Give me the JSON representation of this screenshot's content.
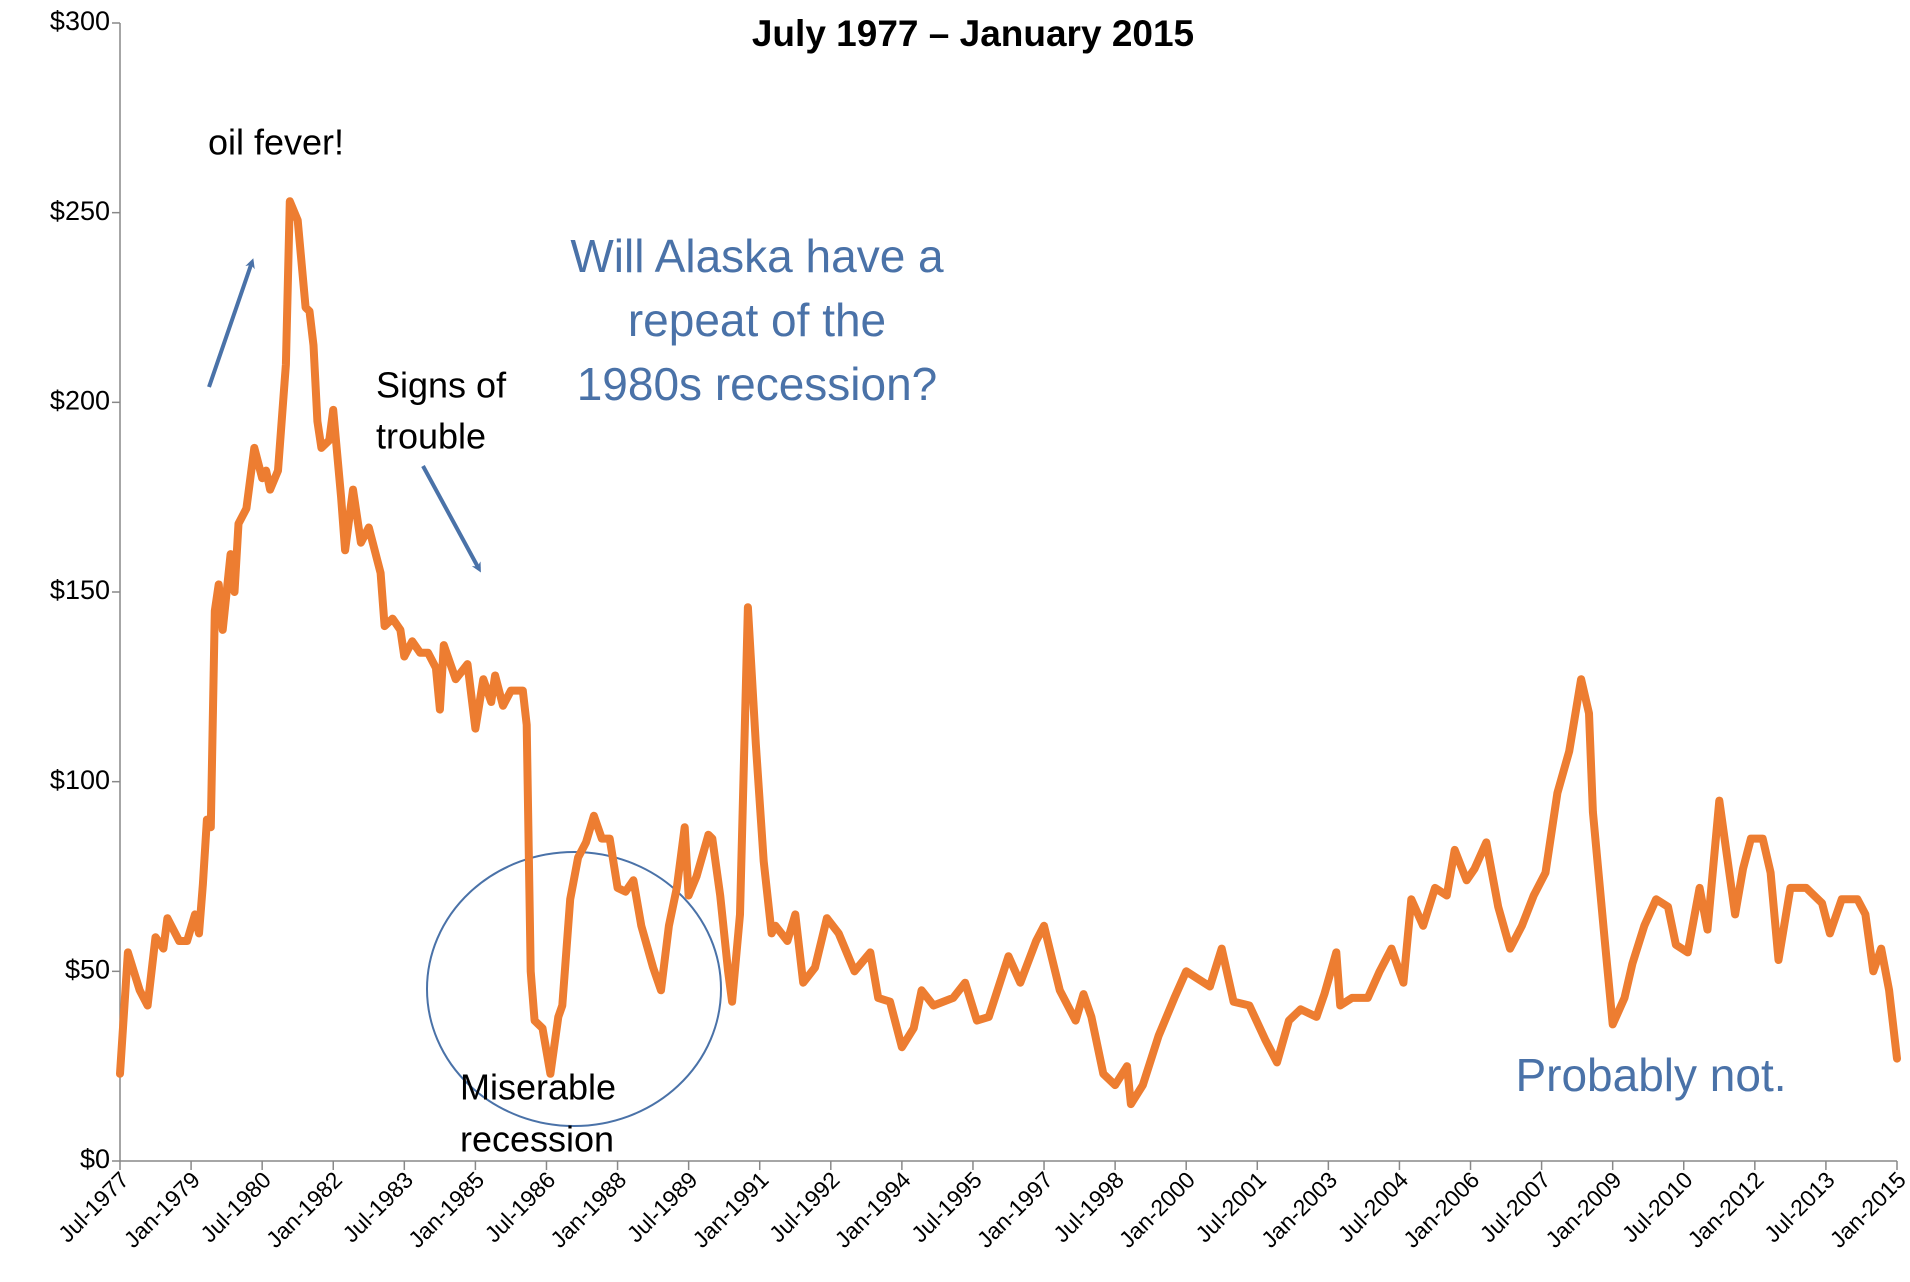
{
  "chart_data": {
    "type": "line",
    "title": "July 1977 – January 2015",
    "x": [
      "Jul-1977",
      "Sep-1977",
      "Dec-1977",
      "Feb-1978",
      "Apr-1978",
      "Jun-1978",
      "Jul-1978",
      "Oct-1978",
      "Dec-1978",
      "Feb-1979",
      "Mar-1979",
      "Apr-1979",
      "May-1979",
      "Jun-1979",
      "Jul-1979",
      "Aug-1979",
      "Sep-1979",
      "Nov-1979",
      "Dec-1979",
      "Jan-1980",
      "Mar-1980",
      "May-1980",
      "Jul-1980",
      "Aug-1980",
      "Sep-1980",
      "Nov-1980",
      "Jan-1981",
      "Feb-1981",
      "Apr-1981",
      "Jun-1981",
      "Jul-1981",
      "Aug-1981",
      "Sep-1981",
      "Oct-1981",
      "Dec-1981",
      "Jan-1982",
      "Mar-1982",
      "Apr-1982",
      "Jun-1982",
      "Aug-1982",
      "Oct-1982",
      "Jan-1983",
      "Feb-1983",
      "Apr-1983",
      "Jun-1983",
      "Jul-1983",
      "Sep-1983",
      "Nov-1983",
      "Jan-1984",
      "Mar-1984",
      "Apr-1984",
      "May-1984",
      "Aug-1984",
      "Nov-1984",
      "Jan-1985",
      "Mar-1985",
      "May-1985",
      "Jun-1985",
      "Aug-1985",
      "Oct-1985",
      "Jan-1986",
      "Feb-1986",
      "Mar-1986",
      "Apr-1986",
      "Jun-1986",
      "Aug-1986",
      "Oct-1986",
      "Nov-1986",
      "Jan-1987",
      "Mar-1987",
      "May-1987",
      "Jul-1987",
      "Sep-1987",
      "Nov-1987",
      "Jan-1988",
      "Mar-1988",
      "May-1988",
      "Jul-1988",
      "Oct-1988",
      "Dec-1988",
      "Feb-1989",
      "Apr-1989",
      "Jun-1989",
      "Jul-1989",
      "Sep-1989",
      "Dec-1989",
      "Jan-1990",
      "Mar-1990",
      "May-1990",
      "Jun-1990",
      "Aug-1990",
      "Oct-1990",
      "Dec-1990",
      "Feb-1991",
      "Apr-1991",
      "May-1991",
      "Aug-1991",
      "Oct-1991",
      "Dec-1991",
      "Mar-1992",
      "Jun-1992",
      "Sep-1992",
      "Jan-1993",
      "May-1993",
      "Jul-1993",
      "Oct-1993",
      "Jan-1994",
      "Apr-1994",
      "Jun-1994",
      "Sep-1994",
      "Feb-1995",
      "May-1995",
      "Aug-1995",
      "Nov-1995",
      "Apr-1996",
      "Jul-1996",
      "Nov-1996",
      "Jan-1997",
      "May-1997",
      "Sep-1997",
      "Nov-1997",
      "Jan-1998",
      "Apr-1998",
      "Jul-1998",
      "Oct-1998",
      "Nov-1998",
      "Feb-1999",
      "Jun-1999",
      "Oct-1999",
      "Jan-2000",
      "Apr-2000",
      "Jul-2000",
      "Oct-2000",
      "Jan-2001",
      "May-2001",
      "Sep-2001",
      "Dec-2001",
      "Mar-2002",
      "Jun-2002",
      "Oct-2002",
      "Dec-2002",
      "Mar-2003",
      "Apr-2003",
      "Jul-2003",
      "Nov-2003",
      "Feb-2004",
      "May-2004",
      "Aug-2004",
      "Oct-2004",
      "Jan-2005",
      "Apr-2005",
      "Jul-2005",
      "Sep-2005",
      "Dec-2005",
      "Feb-2006",
      "May-2006",
      "Aug-2006",
      "Nov-2006",
      "Feb-2007",
      "May-2007",
      "Aug-2007",
      "Nov-2007",
      "Feb-2008",
      "May-2008",
      "Jul-2008",
      "Aug-2008",
      "Nov-2008",
      "Jan-2009",
      "Apr-2009",
      "Jun-2009",
      "Sep-2009",
      "Dec-2009",
      "Mar-2010",
      "May-2010",
      "Aug-2010",
      "Nov-2010",
      "Jan-2011",
      "Apr-2011",
      "Jun-2011",
      "Aug-2011",
      "Oct-2011",
      "Dec-2011",
      "Mar-2012",
      "May-2012",
      "Jul-2012",
      "Oct-2012",
      "Feb-2013",
      "Jun-2013",
      "Aug-2013",
      "Nov-2013",
      "Mar-2014",
      "May-2014",
      "Jul-2014",
      "Sep-2014",
      "Nov-2014",
      "Jan-2015"
    ],
    "series": [
      {
        "color": "#ed7d31",
        "values": [
          23,
          55,
          45,
          41,
          59,
          56,
          64,
          58,
          58,
          65,
          60,
          73,
          90,
          88,
          145,
          152,
          140,
          160,
          150,
          168,
          172,
          188,
          180,
          182,
          177,
          182,
          210,
          253,
          248,
          225,
          224,
          215,
          195,
          188,
          190,
          198,
          175,
          161,
          177,
          163,
          167,
          155,
          141,
          143,
          140,
          133,
          137,
          134,
          134,
          130,
          119,
          136,
          127,
          131,
          114,
          127,
          121,
          128,
          120,
          124,
          124,
          115,
          50,
          37,
          35,
          23,
          38,
          41,
          69,
          80,
          84,
          91,
          85,
          85,
          72,
          71,
          74,
          62,
          51,
          45,
          62,
          72,
          88,
          70,
          75,
          86,
          85,
          70,
          50,
          42,
          65,
          146,
          110,
          79,
          60,
          62,
          58,
          65,
          47,
          51,
          64,
          60,
          50,
          55,
          43,
          42,
          30,
          35,
          45,
          41,
          43,
          47,
          37,
          38,
          54,
          47,
          58,
          62,
          45,
          37,
          44,
          38,
          23,
          20,
          25,
          15,
          20,
          33,
          43,
          50,
          48,
          46,
          56,
          42,
          41,
          32,
          26,
          37,
          40,
          38,
          44,
          55,
          41,
          43,
          43,
          50,
          56,
          47,
          69,
          62,
          72,
          70,
          82,
          74,
          77,
          84,
          67,
          56,
          62,
          70,
          76,
          97,
          108,
          127,
          118,
          92,
          58,
          36,
          43,
          52,
          62,
          69,
          67,
          57,
          55,
          72,
          61,
          95,
          80,
          65,
          77,
          85,
          85,
          76,
          53,
          72,
          72,
          68,
          60,
          69,
          69,
          65,
          50,
          56,
          45,
          27
        ]
      }
    ],
    "xlim": [
      "Jul-1977",
      "Jan-2015"
    ],
    "xticks": [
      "Jul-1977",
      "Jan-1979",
      "Jul-1980",
      "Jan-1982",
      "Jul-1983",
      "Jan-1985",
      "Jul-1986",
      "Jan-1988",
      "Jul-1989",
      "Jan-1991",
      "Jul-1992",
      "Jan-1994",
      "Jul-1995",
      "Jan-1997",
      "Jul-1998",
      "Jan-2000",
      "Jul-2001",
      "Jan-2003",
      "Jul-2004",
      "Jan-2006",
      "Jul-2007",
      "Jan-2009",
      "Jul-2010",
      "Jan-2012",
      "Jul-2013",
      "Jan-2015"
    ],
    "ylim": [
      0,
      300
    ],
    "yticks": [
      {
        "value": 0,
        "label": "$0"
      },
      {
        "value": 50,
        "label": "$50"
      },
      {
        "value": 100,
        "label": "$100"
      },
      {
        "value": 150,
        "label": "$150"
      },
      {
        "value": 200,
        "label": "$200"
      },
      {
        "value": 250,
        "label": "$250"
      },
      {
        "value": 300,
        "label": "$300"
      }
    ],
    "annotations": [
      [
        "oil fever!"
      ],
      [
        "Signs of",
        "trouble"
      ],
      [
        "Will Alaska have a",
        "repeat of the",
        "1980s recession?"
      ],
      [
        "Miserable",
        "recession"
      ],
      [
        "Probably not."
      ]
    ]
  }
}
